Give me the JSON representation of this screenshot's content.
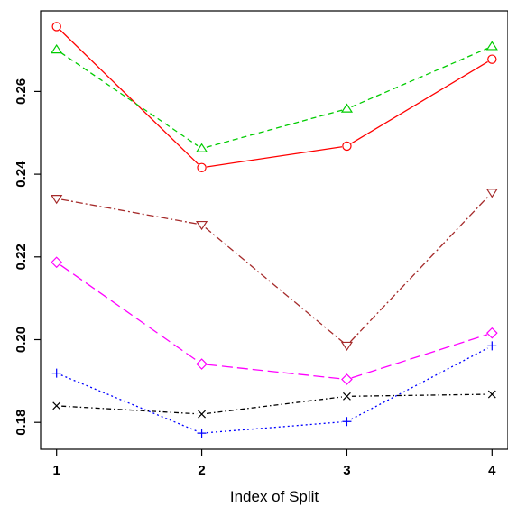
{
  "chart_data": {
    "type": "line",
    "title": "",
    "xlabel": "Index of Split",
    "ylabel": "",
    "x": [
      1,
      2,
      3,
      4
    ],
    "xticks": [
      1,
      2,
      3,
      4
    ],
    "xtick_labels": [
      "1",
      "2",
      "3",
      "4"
    ],
    "yticks": [
      0.18,
      0.2,
      0.22,
      0.24,
      0.26
    ],
    "ytick_labels": [
      "0.18",
      "0.20",
      "0.22",
      "0.24",
      "0.26"
    ],
    "xlim": [
      0.89,
      4.11
    ],
    "ylim": [
      0.1735,
      0.2795
    ],
    "grid": false,
    "legend": "none",
    "series": [
      {
        "values": [
          0.2757,
          0.2416,
          0.2468,
          0.2678
        ],
        "color": "#ff0000",
        "dash": "solid",
        "marker": "circle"
      },
      {
        "values": [
          0.2701,
          0.2462,
          0.2558,
          0.2709
        ],
        "color": "#00cc00",
        "dash": "dashed",
        "marker": "triangle-up"
      },
      {
        "values": [
          0.2341,
          0.2278,
          0.1986,
          0.2356
        ],
        "color": "#a52a2a",
        "dash": "dashdot",
        "marker": "triangle-down"
      },
      {
        "values": [
          0.2187,
          0.1941,
          0.1904,
          0.2016
        ],
        "color": "#ff00ff",
        "dash": "longdash",
        "marker": "diamond"
      },
      {
        "values": [
          0.1919,
          0.1774,
          0.1802,
          0.1985
        ],
        "color": "#0000ff",
        "dash": "dotted",
        "marker": "plus"
      },
      {
        "values": [
          0.184,
          0.182,
          0.1863,
          0.1868
        ],
        "color": "#000000",
        "dash": "twodash",
        "marker": "cross"
      }
    ]
  }
}
